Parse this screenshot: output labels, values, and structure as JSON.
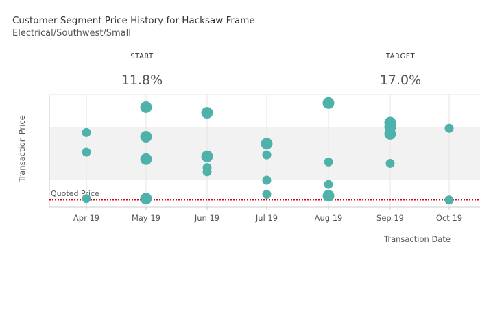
{
  "header": {
    "title": "Customer Segment Price History for Hacksaw Frame",
    "subtitle": "Electrical/Southwest/Small"
  },
  "kpis": {
    "start_label": "START",
    "start_value": "11.8%",
    "target_label": "TARGET",
    "target_value": "17.0%"
  },
  "colors": {
    "dot": "#4fb2aa",
    "band": "#f2f2f2",
    "quoted_line": "#d0021b",
    "gridline": "#e6e6e6",
    "axis": "#cccccc"
  },
  "chart_data": {
    "type": "scatter",
    "xlabel": "Transaction Date",
    "ylabel": "Transaction Price",
    "categories": [
      "Apr 19",
      "May 19",
      "Jun 19",
      "Jul 19",
      "Aug 19",
      "Sep 19",
      "Oct 19"
    ],
    "reference_line": {
      "label": "Quoted Price",
      "value": 0,
      "style": "dotted"
    },
    "ylim": [
      -5,
      75
    ],
    "band": [
      14,
      52
    ],
    "points": [
      {
        "x": "Apr 19",
        "y": 48,
        "size": 1
      },
      {
        "x": "Apr 19",
        "y": 34,
        "size": 1
      },
      {
        "x": "Apr 19",
        "y": 1,
        "size": 1
      },
      {
        "x": "May 19",
        "y": 66,
        "size": 2
      },
      {
        "x": "May 19",
        "y": 45,
        "size": 2
      },
      {
        "x": "May 19",
        "y": 29,
        "size": 2
      },
      {
        "x": "May 19",
        "y": 1,
        "size": 2
      },
      {
        "x": "Jun 19",
        "y": 62,
        "size": 2
      },
      {
        "x": "Jun 19",
        "y": 31,
        "size": 2
      },
      {
        "x": "Jun 19",
        "y": 23,
        "size": 1
      },
      {
        "x": "Jun 19",
        "y": 20,
        "size": 1
      },
      {
        "x": "Jul 19",
        "y": 40,
        "size": 2
      },
      {
        "x": "Jul 19",
        "y": 32,
        "size": 1
      },
      {
        "x": "Jul 19",
        "y": 14,
        "size": 1
      },
      {
        "x": "Jul 19",
        "y": 4,
        "size": 1
      },
      {
        "x": "Aug 19",
        "y": 69,
        "size": 2
      },
      {
        "x": "Aug 19",
        "y": 27,
        "size": 1
      },
      {
        "x": "Aug 19",
        "y": 11,
        "size": 1
      },
      {
        "x": "Aug 19",
        "y": 3,
        "size": 2
      },
      {
        "x": "Sep 19",
        "y": 55,
        "size": 2
      },
      {
        "x": "Sep 19",
        "y": 52,
        "size": 2
      },
      {
        "x": "Sep 19",
        "y": 47,
        "size": 2
      },
      {
        "x": "Sep 19",
        "y": 26,
        "size": 1
      },
      {
        "x": "Oct 19",
        "y": 51,
        "size": 1
      },
      {
        "x": "Oct 19",
        "y": 0,
        "size": 1
      }
    ]
  }
}
